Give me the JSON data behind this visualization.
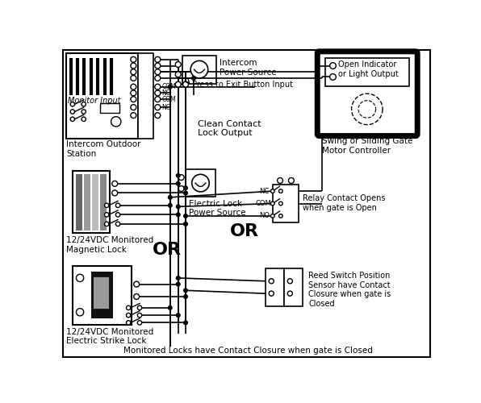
{
  "bg_color": "#ffffff",
  "line_color": "#000000",
  "fig_width": 5.96,
  "fig_height": 5.0,
  "dpi": 100,
  "labels": {
    "monitor_input": "Monitor Input",
    "intercom_outdoor": "Intercom Outdoor\nStation",
    "intercom_ps": "Intercom\nPower Source",
    "press_exit": "Press to Exit Button Input",
    "clean_contact": "Clean Contact\nLock Output",
    "electric_lock_ps": "Electric Lock\nPower Source",
    "open_indicator": "Open Indicator\nor Light Output",
    "swing_gate": "Swing or Sliding Gate\nMotor Controller",
    "relay_contact": "Relay Contact Opens\nwhen gate is Open",
    "or1": "OR",
    "or2": "OR",
    "mag_lock": "12/24VDC Monitored\nMagnetic Lock",
    "strike_lock": "12/24VDC Monitored\nElectric Strike Lock",
    "monitored_locks": "Monitored Locks have Contact Closure when gate is Closed",
    "reed_switch": "Reed Switch Position\nSensor have Contact\nClosure when gate is\nClosed"
  }
}
